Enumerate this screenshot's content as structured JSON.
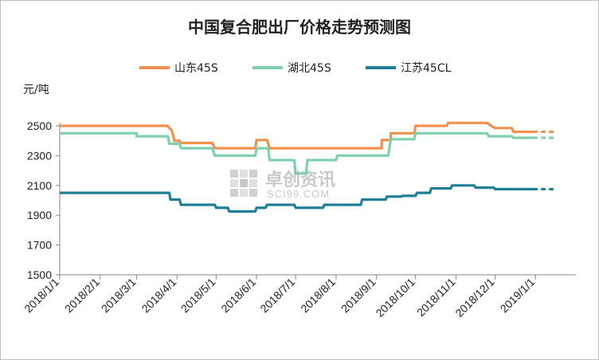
{
  "chart_data": {
    "type": "line",
    "title": "中国复合肥出厂价格走势预测图",
    "ylabel": "元/吨",
    "ylim": [
      1500,
      2500
    ],
    "yticks": [
      1500,
      1700,
      1900,
      2100,
      2300,
      2500
    ],
    "xlim": [
      "2018-01-01",
      "2019-02-01"
    ],
    "xticks": [
      "2018/1/1",
      "2018/2/1",
      "2018/3/1",
      "2018/4/1",
      "2018/5/1",
      "2018/6/1",
      "2018/7/1",
      "2018/8/1",
      "2018/9/1",
      "2018/10/1",
      "2018/11/1",
      "2018/12/1",
      "2019/1/1"
    ],
    "grid": false,
    "legend_position": "top",
    "watermark": {
      "title": "卓创资讯",
      "subtitle": "SCI99.COM"
    },
    "series": [
      {
        "name": "山东45S",
        "color": "#F0914F",
        "points": [
          [
            "2018-01-01",
            2500
          ],
          [
            "2018-03-25",
            2500
          ],
          [
            "2018-03-25",
            2495
          ],
          [
            "2018-03-28",
            2470
          ],
          [
            "2018-03-30",
            2400
          ],
          [
            "2018-04-03",
            2400
          ],
          [
            "2018-04-03",
            2385
          ],
          [
            "2018-04-28",
            2385
          ],
          [
            "2018-04-30",
            2350
          ],
          [
            "2018-05-31",
            2350
          ],
          [
            "2018-06-01",
            2405
          ],
          [
            "2018-06-09",
            2405
          ],
          [
            "2018-06-11",
            2350
          ],
          [
            "2018-09-05",
            2350
          ],
          [
            "2018-09-05",
            2405
          ],
          [
            "2018-09-12",
            2405
          ],
          [
            "2018-09-12",
            2450
          ],
          [
            "2018-09-30",
            2450
          ],
          [
            "2018-10-01",
            2500
          ],
          [
            "2018-10-25",
            2500
          ],
          [
            "2018-10-26",
            2520
          ],
          [
            "2018-11-25",
            2520
          ],
          [
            "2018-11-28",
            2500
          ],
          [
            "2018-12-01",
            2485
          ],
          [
            "2018-12-14",
            2485
          ],
          [
            "2018-12-15",
            2460
          ],
          [
            "2018-12-31",
            2460
          ]
        ],
        "forecast": [
          [
            "2018-12-31",
            2460
          ],
          [
            "2019-01-15",
            2460
          ]
        ]
      },
      {
        "name": "湖北45S",
        "color": "#7FD1AE",
        "points": [
          [
            "2018-01-01",
            2450
          ],
          [
            "2018-03-01",
            2450
          ],
          [
            "2018-03-01",
            2430
          ],
          [
            "2018-03-25",
            2430
          ],
          [
            "2018-03-26",
            2380
          ],
          [
            "2018-04-03",
            2380
          ],
          [
            "2018-04-04",
            2350
          ],
          [
            "2018-04-28",
            2350
          ],
          [
            "2018-04-30",
            2300
          ],
          [
            "2018-05-31",
            2300
          ],
          [
            "2018-06-01",
            2350
          ],
          [
            "2018-06-10",
            2350
          ],
          [
            "2018-06-11",
            2270
          ],
          [
            "2018-06-30",
            2270
          ],
          [
            "2018-07-01",
            2180
          ],
          [
            "2018-07-09",
            2180
          ],
          [
            "2018-07-10",
            2270
          ],
          [
            "2018-08-01",
            2270
          ],
          [
            "2018-08-02",
            2300
          ],
          [
            "2018-09-10",
            2300
          ],
          [
            "2018-09-12",
            2410
          ],
          [
            "2018-09-30",
            2410
          ],
          [
            "2018-10-01",
            2450
          ],
          [
            "2018-11-25",
            2450
          ],
          [
            "2018-11-26",
            2430
          ],
          [
            "2018-12-14",
            2430
          ],
          [
            "2018-12-15",
            2420
          ],
          [
            "2018-12-31",
            2420
          ]
        ],
        "forecast": [
          [
            "2018-12-31",
            2420
          ],
          [
            "2019-01-15",
            2420
          ]
        ]
      },
      {
        "name": "江苏45CL",
        "color": "#1F7F96",
        "points": [
          [
            "2018-01-01",
            2050
          ],
          [
            "2018-03-26",
            2050
          ],
          [
            "2018-03-27",
            2005
          ],
          [
            "2018-04-03",
            2005
          ],
          [
            "2018-04-04",
            1970
          ],
          [
            "2018-04-30",
            1970
          ],
          [
            "2018-05-01",
            1950
          ],
          [
            "2018-05-10",
            1950
          ],
          [
            "2018-05-11",
            1925
          ],
          [
            "2018-05-31",
            1925
          ],
          [
            "2018-06-01",
            1950
          ],
          [
            "2018-06-08",
            1950
          ],
          [
            "2018-06-09",
            1970
          ],
          [
            "2018-06-30",
            1970
          ],
          [
            "2018-07-01",
            1950
          ],
          [
            "2018-07-22",
            1950
          ],
          [
            "2018-07-23",
            1970
          ],
          [
            "2018-08-20",
            1970
          ],
          [
            "2018-08-21",
            2005
          ],
          [
            "2018-09-08",
            2005
          ],
          [
            "2018-09-09",
            2025
          ],
          [
            "2018-09-20",
            2025
          ],
          [
            "2018-09-21",
            2030
          ],
          [
            "2018-10-01",
            2030
          ],
          [
            "2018-10-02",
            2050
          ],
          [
            "2018-10-12",
            2050
          ],
          [
            "2018-10-13",
            2080
          ],
          [
            "2018-10-28",
            2080
          ],
          [
            "2018-10-29",
            2100
          ],
          [
            "2018-11-15",
            2100
          ],
          [
            "2018-11-16",
            2085
          ],
          [
            "2018-11-30",
            2085
          ],
          [
            "2018-12-01",
            2075
          ],
          [
            "2018-12-31",
            2075
          ]
        ],
        "forecast": [
          [
            "2018-12-31",
            2075
          ],
          [
            "2019-01-15",
            2075
          ]
        ]
      }
    ]
  }
}
